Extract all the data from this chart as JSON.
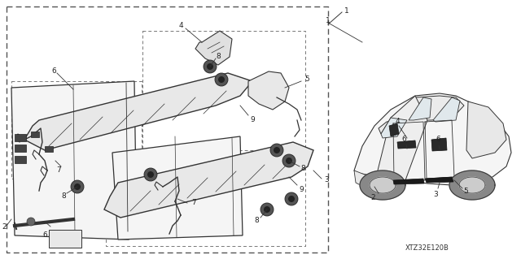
{
  "bg_color": "#ffffff",
  "diagram_code": "XTZ32E120B",
  "line_color": "#333333",
  "text_color": "#222222",
  "label_fontsize": 6.5,
  "fig_w": 6.4,
  "fig_h": 3.19,
  "dpi": 100
}
